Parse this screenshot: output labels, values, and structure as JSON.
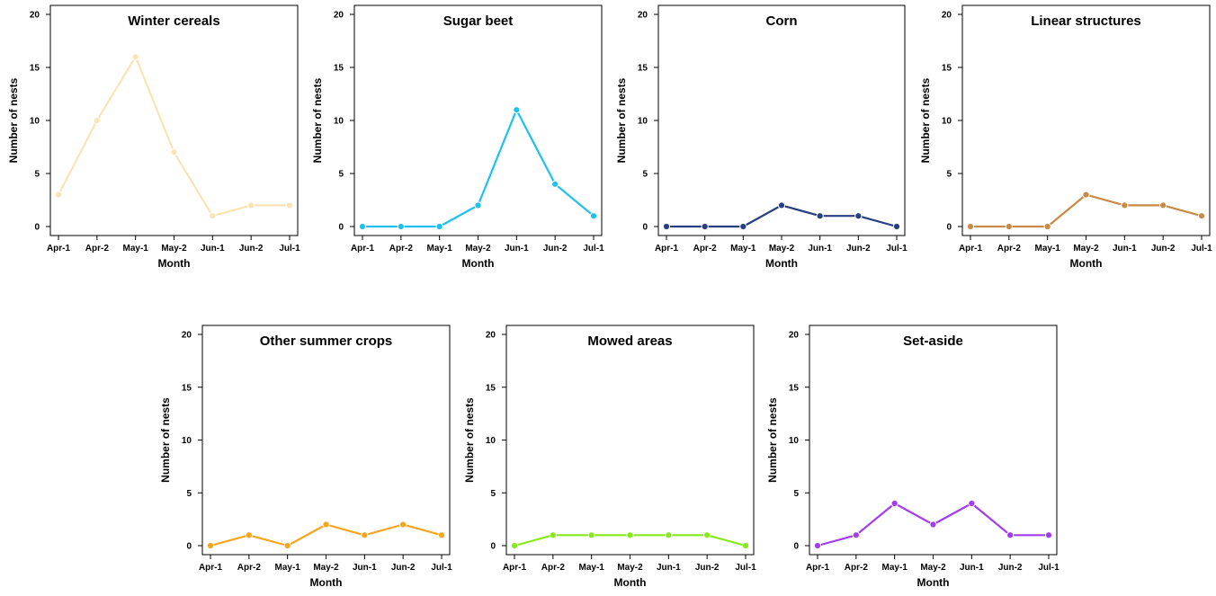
{
  "chart_data": [
    {
      "type": "line",
      "title": "Winter cereals",
      "xlabel": "Month",
      "ylabel": "Number of nests",
      "categories": [
        "Apr-1",
        "Apr-2",
        "May-1",
        "May-2",
        "Jun-1",
        "Jun-2",
        "Jul-1"
      ],
      "ylim": [
        0,
        20
      ],
      "yticks": [
        0,
        5,
        10,
        15,
        20
      ],
      "color": "#fde3b4",
      "values": [
        3,
        10,
        16,
        7,
        1,
        2,
        2
      ]
    },
    {
      "type": "line",
      "title": "Sugar beet",
      "xlabel": "Month",
      "ylabel": "Number of nests",
      "categories": [
        "Apr-1",
        "Apr-2",
        "May-1",
        "May-2",
        "Jun-1",
        "Jun-2",
        "Jul-1"
      ],
      "ylim": [
        0,
        20
      ],
      "yticks": [
        0,
        5,
        10,
        15,
        20
      ],
      "color": "#1ec0f0",
      "values": [
        0,
        0,
        0,
        2,
        11,
        4,
        1
      ]
    },
    {
      "type": "line",
      "title": "Corn",
      "xlabel": "Month",
      "ylabel": "Number of nests",
      "categories": [
        "Apr-1",
        "Apr-2",
        "May-1",
        "May-2",
        "Jun-1",
        "Jun-2",
        "Jul-1"
      ],
      "ylim": [
        0,
        20
      ],
      "yticks": [
        0,
        5,
        10,
        15,
        20
      ],
      "color": "#263f80",
      "values": [
        0,
        0,
        0,
        2,
        1,
        1,
        0
      ]
    },
    {
      "type": "line",
      "title": "Linear structures",
      "xlabel": "Month",
      "ylabel": "Number of nests",
      "categories": [
        "Apr-1",
        "Apr-2",
        "May-1",
        "May-2",
        "Jun-1",
        "Jun-2",
        "Jul-1"
      ],
      "ylim": [
        0,
        20
      ],
      "yticks": [
        0,
        5,
        10,
        15,
        20
      ],
      "color": "#c98a45",
      "values": [
        0,
        0,
        0,
        3,
        2,
        2,
        1
      ]
    },
    {
      "type": "line",
      "title": "Other summer crops",
      "xlabel": "Month",
      "ylabel": "Number of nests",
      "categories": [
        "Apr-1",
        "Apr-2",
        "May-1",
        "May-2",
        "Jun-1",
        "Jun-2",
        "Jul-1"
      ],
      "ylim": [
        0,
        20
      ],
      "yticks": [
        0,
        5,
        10,
        15,
        20
      ],
      "color": "#f7a51a",
      "values": [
        0,
        1,
        0,
        2,
        1,
        2,
        1
      ]
    },
    {
      "type": "line",
      "title": "Mowed areas",
      "xlabel": "Month",
      "ylabel": "Number of nests",
      "categories": [
        "Apr-1",
        "Apr-2",
        "May-1",
        "May-2",
        "Jun-1",
        "Jun-2",
        "Jul-1"
      ],
      "ylim": [
        0,
        20
      ],
      "yticks": [
        0,
        5,
        10,
        15,
        20
      ],
      "color": "#86ea1a",
      "values": [
        0,
        1,
        1,
        1,
        1,
        1,
        0
      ]
    },
    {
      "type": "line",
      "title": "Set-aside",
      "xlabel": "Month",
      "ylabel": "Number of nests",
      "categories": [
        "Apr-1",
        "Apr-2",
        "May-1",
        "May-2",
        "Jun-1",
        "Jun-2",
        "Jul-1"
      ],
      "ylim": [
        0,
        20
      ],
      "yticks": [
        0,
        5,
        10,
        15,
        20
      ],
      "color": "#a33cf0",
      "values": [
        0,
        1,
        4,
        2,
        4,
        1,
        1
      ]
    }
  ]
}
